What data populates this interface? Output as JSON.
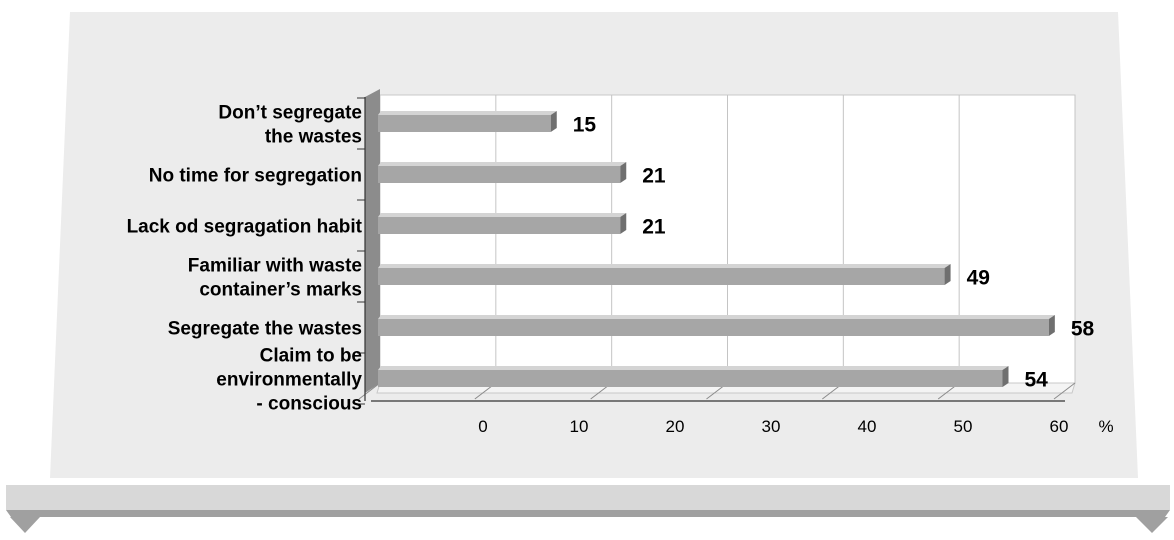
{
  "chart_data": {
    "type": "bar",
    "orientation": "horizontal",
    "categories": [
      [
        "Don’t segregate",
        "the wastes"
      ],
      [
        "No time for segregation"
      ],
      [
        "Lack od segragation habit"
      ],
      [
        "Familiar with waste",
        "container’s marks"
      ],
      [
        "Segregate the wastes"
      ],
      [
        "Claim to be",
        "environmentally",
        "- conscious"
      ]
    ],
    "values": [
      15,
      21,
      21,
      49,
      58,
      54
    ],
    "x_ticks": [
      "0",
      "10",
      "20",
      "30",
      "40",
      "50",
      "60"
    ],
    "xlim": [
      0,
      60
    ],
    "x_unit": "%",
    "grid": true,
    "three_d": true,
    "colors": {
      "bar_front": "#a6a6a6",
      "bar_top": "#d4d4d4",
      "bar_end": "#6f6f6f",
      "panel": "#ececec",
      "plot_wall": "#ffffff",
      "side_wall": "#8c8c8c",
      "base": "#d8d8d8",
      "base_rim": "#a0a0a0"
    }
  }
}
